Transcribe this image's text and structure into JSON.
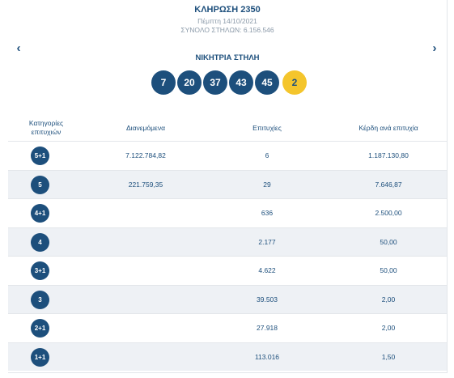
{
  "draw": {
    "title": "ΚΛΗΡΩΣΗ 2350",
    "date": "Πέμπτη 14/10/2021",
    "total_columns": "ΣΥΝΟΛΟ ΣΤΗΛΩΝ: 6.156.546"
  },
  "nav": {
    "prev_icon": "‹",
    "next_icon": "›"
  },
  "winning": {
    "label": "ΝΙΚΗΤΡΙΑ ΣΤΗΛΗ",
    "numbers": [
      "7",
      "20",
      "37",
      "43",
      "45"
    ],
    "bonus": "2"
  },
  "table": {
    "headers": {
      "category_line1": "Κατηγορίες",
      "category_line2": "επιτυχιών",
      "distributed": "Διανεμόμενα",
      "winners": "Επιτυχίες",
      "prize": "Κέρδη ανά επιτυχία"
    },
    "rows": [
      {
        "category": "5+1",
        "distributed": "7.122.784,82",
        "winners": "6",
        "prize": "1.187.130,80"
      },
      {
        "category": "5",
        "distributed": "221.759,35",
        "winners": "29",
        "prize": "7.646,87"
      },
      {
        "category": "4+1",
        "distributed": "",
        "winners": "636",
        "prize": "2.500,00"
      },
      {
        "category": "4",
        "distributed": "",
        "winners": "2.177",
        "prize": "50,00"
      },
      {
        "category": "3+1",
        "distributed": "",
        "winners": "4.622",
        "prize": "50,00"
      },
      {
        "category": "3",
        "distributed": "",
        "winners": "39.503",
        "prize": "2,00"
      },
      {
        "category": "2+1",
        "distributed": "",
        "winners": "27.918",
        "prize": "2,00"
      },
      {
        "category": "1+1",
        "distributed": "",
        "winners": "113.016",
        "prize": "1,50"
      }
    ]
  },
  "colors": {
    "primary": "#1d4f7c",
    "bonus_ball": "#f4c52c",
    "muted_text": "#8a99a8",
    "row_alt": "#eef1f5"
  }
}
